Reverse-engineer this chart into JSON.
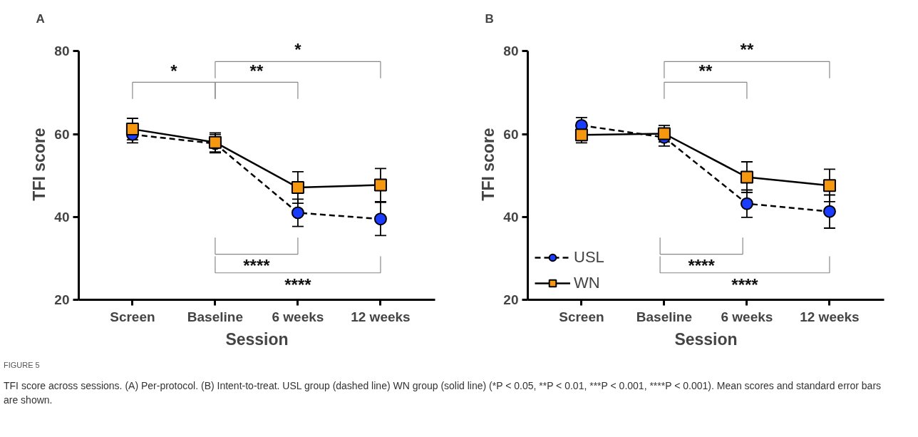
{
  "chart_data": [
    {
      "type": "line",
      "title": "A",
      "xlabel": "Session",
      "ylabel": "TFI score",
      "categories": [
        "Screen",
        "Baseline",
        "6 weeks",
        "12 weeks"
      ],
      "series": [
        {
          "color": "#1a3cff",
          "marker": "circle",
          "line_style": "dashed",
          "values": [
            59.9,
            57.7,
            41.0,
            39.5
          ],
          "errors": [
            2.0,
            2.2,
            3.3,
            4.0
          ]
        },
        {
          "color": "#f5970f",
          "marker": "square",
          "line_style": "solid",
          "values": [
            61.2,
            58.0,
            47.1,
            47.7
          ],
          "errors": [
            2.6,
            2.3,
            3.8,
            4.0
          ]
        }
      ],
      "ylim": [
        20,
        80
      ],
      "yticks": [
        20,
        40,
        60,
        80
      ],
      "grid": false,
      "legend": false,
      "annotations": [
        "*",
        "**",
        "*",
        "****",
        "****"
      ]
    },
    {
      "type": "line",
      "title": "B",
      "xlabel": "Session",
      "ylabel": "TFI score",
      "categories": [
        "Screen",
        "Baseline",
        "6 weeks",
        "12 weeks"
      ],
      "series": [
        {
          "name": "USL",
          "color": "#1a3cff",
          "marker": "circle",
          "line_style": "dashed",
          "values": [
            62.1,
            59.2,
            43.2,
            41.3
          ],
          "errors": [
            1.9,
            2.1,
            3.3,
            4.0
          ]
        },
        {
          "name": "WN",
          "color": "#f5970f",
          "marker": "square",
          "line_style": "solid",
          "values": [
            59.8,
            60.1,
            49.6,
            47.6
          ],
          "errors": [
            1.9,
            2.0,
            3.7,
            3.9
          ]
        }
      ],
      "ylim": [
        20,
        80
      ],
      "yticks": [
        20,
        40,
        60,
        80
      ],
      "grid": false,
      "legend": "bottom left",
      "annotations": [
        "**",
        "**",
        "****",
        "****",
        "FIGURE 5",
        "TFI score across sessions. (A) Per-protocol. (B) Intent-to-treat. USL group (dashed line) WN group (solid line) (*P < 0.05, **P < 0.01, ***P < 0.001, ****P < 0.001). Mean scores and standard error bars are shown."
      ]
    }
  ]
}
